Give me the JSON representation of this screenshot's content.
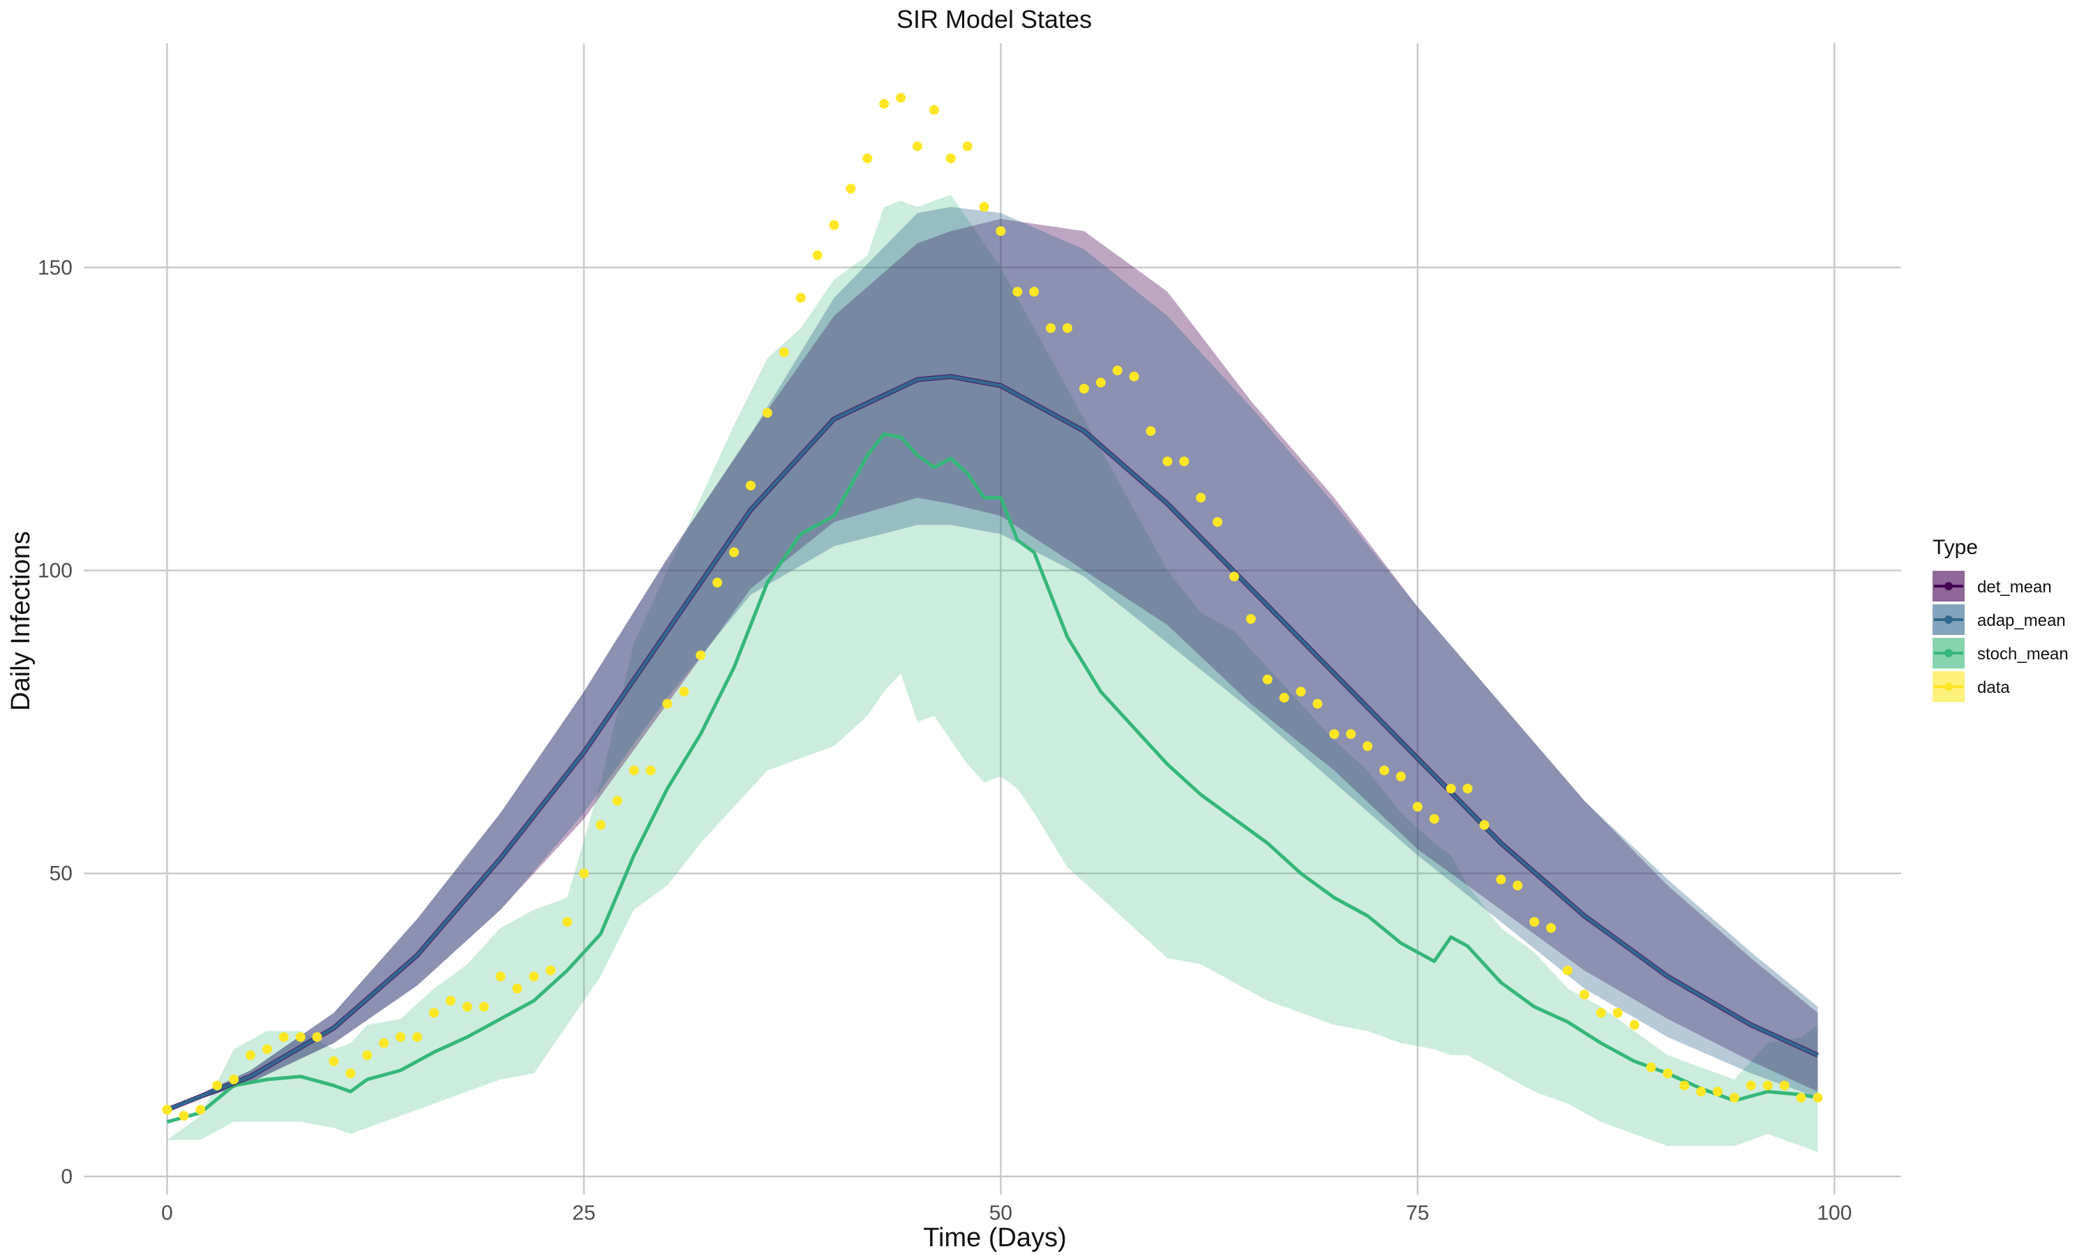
{
  "chart_data": {
    "type": "line",
    "title": "SIR Model States",
    "xlabel": "Time (Days)",
    "ylabel": "Daily Infections",
    "xlim": [
      -5,
      104
    ],
    "ylim": [
      -3,
      187
    ],
    "x_ticks": [
      0,
      25,
      50,
      75,
      100
    ],
    "y_ticks": [
      0,
      50,
      100,
      150
    ],
    "grid": true,
    "legend": {
      "title": "Type",
      "placement": "right",
      "items": [
        {
          "label": "det_mean",
          "color": "#440154"
        },
        {
          "label": "adap_mean",
          "color": "#31688E"
        },
        {
          "label": "stoch_mean",
          "color": "#35B779"
        },
        {
          "label": "data",
          "color": "#FDE725"
        }
      ]
    },
    "series": [
      {
        "name": "det_mean",
        "color": "#440154",
        "fill_opacity": 0.35,
        "x": [
          0,
          5,
          10,
          15,
          20,
          25,
          30,
          35,
          40,
          45,
          47,
          50,
          55,
          60,
          65,
          70,
          75,
          80,
          85,
          90,
          95,
          99
        ],
        "mean": [
          11,
          16.5,
          24.5,
          36.5,
          52.5,
          70,
          90,
          110,
          125,
          131.5,
          132,
          130.5,
          123,
          111,
          97,
          83,
          69,
          55,
          43,
          33,
          25,
          20
        ],
        "upper": [
          11,
          17.5,
          27,
          42.5,
          60,
          80,
          102,
          122.5,
          142,
          154,
          156,
          158,
          156,
          146,
          128,
          112,
          94,
          78,
          62,
          48,
          36,
          27
        ],
        "lower": [
          11,
          15.5,
          22,
          31.5,
          44,
          59,
          78,
          97,
          108,
          112,
          111,
          109,
          100,
          91,
          78,
          67,
          54,
          44,
          34,
          26,
          19,
          14
        ]
      },
      {
        "name": "adap_mean",
        "color": "#31688E",
        "fill_opacity": 0.35,
        "x": [
          0,
          5,
          10,
          15,
          20,
          25,
          30,
          35,
          40,
          45,
          47,
          50,
          55,
          60,
          65,
          70,
          75,
          80,
          85,
          90,
          95,
          99
        ],
        "mean": [
          11,
          16.5,
          24.5,
          36.5,
          52.5,
          70,
          90,
          110,
          125,
          131.5,
          132,
          130.5,
          123,
          111,
          97,
          83,
          69,
          55,
          43,
          33,
          25,
          20
        ],
        "upper": [
          11,
          17.5,
          27,
          42.5,
          60,
          80,
          102,
          122.5,
          145,
          159,
          160,
          159,
          153,
          142,
          127,
          111,
          94,
          78,
          62,
          49,
          37,
          28
        ],
        "lower": [
          11,
          15.5,
          22,
          31.5,
          44,
          60,
          79,
          96,
          104,
          107.5,
          107.5,
          106,
          99,
          88,
          77,
          65,
          53,
          42,
          31,
          23,
          17,
          13
        ]
      },
      {
        "name": "stoch_mean",
        "color": "#35B779",
        "fill_opacity": 0.25,
        "x": [
          0,
          2,
          4,
          6,
          8,
          10,
          11,
          12,
          14,
          16,
          18,
          20,
          22,
          24,
          26,
          28,
          30,
          32,
          34,
          36,
          38,
          40,
          42,
          43,
          44,
          45,
          46,
          47,
          48,
          49,
          50,
          51,
          52,
          54,
          56,
          58,
          60,
          62,
          64,
          66,
          68,
          70,
          72,
          74,
          76,
          77,
          78,
          80,
          82,
          84,
          86,
          88,
          90,
          92,
          94,
          96,
          98,
          99
        ],
        "mean": [
          9,
          10.5,
          15,
          16,
          16.5,
          15,
          14,
          16,
          17.5,
          20.5,
          23,
          26,
          29,
          34,
          40,
          53,
          64,
          73,
          84,
          98,
          106,
          109,
          119,
          122.5,
          122,
          119,
          117,
          118.5,
          116,
          112,
          112,
          105,
          103,
          89,
          80,
          74,
          68,
          63,
          59,
          55,
          50,
          46,
          43,
          38.5,
          35.5,
          39.5,
          38,
          32,
          28,
          25.5,
          22,
          19,
          17,
          14.5,
          12.5,
          14,
          13.5,
          13
        ],
        "upper": [
          6,
          10,
          21,
          24,
          24,
          21,
          22,
          25,
          26,
          31,
          35,
          41,
          44,
          46,
          65,
          88,
          100,
          112,
          124,
          135,
          140,
          148,
          152,
          160,
          161,
          160,
          161,
          162,
          158,
          154,
          150,
          145,
          140,
          130,
          120,
          110,
          100,
          93,
          90,
          84,
          78,
          72,
          67,
          60,
          55,
          53,
          48,
          41,
          37,
          31,
          28,
          24,
          20,
          18,
          16,
          22,
          23,
          25
        ],
        "lower": [
          6,
          6,
          9,
          9,
          9,
          8,
          7,
          8,
          10,
          12,
          14,
          16,
          17,
          25,
          33,
          44,
          48,
          55,
          61,
          67,
          69,
          71,
          76,
          80,
          83,
          75,
          76,
          72,
          68,
          65,
          66,
          64,
          60,
          51,
          46,
          41,
          36,
          35,
          32,
          29,
          27,
          25,
          24,
          22,
          21,
          20,
          20,
          17,
          14,
          12,
          9,
          7,
          5,
          5,
          5,
          7,
          5,
          4
        ]
      }
    ],
    "data_points": {
      "name": "data",
      "color": "#FDE725",
      "x": [
        0,
        1,
        2,
        3,
        4,
        5,
        6,
        7,
        8,
        9,
        10,
        11,
        12,
        13,
        14,
        15,
        16,
        17,
        18,
        19,
        20,
        21,
        22,
        23,
        24,
        25,
        26,
        27,
        28,
        29,
        30,
        31,
        32,
        33,
        34,
        35,
        36,
        37,
        38,
        39,
        40,
        41,
        42,
        43,
        44,
        45,
        46,
        47,
        48,
        49,
        50,
        51,
        52,
        53,
        54,
        55,
        56,
        57,
        58,
        59,
        60,
        61,
        62,
        63,
        64,
        65,
        66,
        67,
        68,
        69,
        70,
        71,
        72,
        73,
        74,
        75,
        76,
        77,
        78,
        79,
        80,
        81,
        82,
        83,
        84,
        85,
        86,
        87,
        88,
        89,
        90,
        91,
        92,
        93,
        94,
        95,
        96,
        97,
        98,
        99
      ],
      "y": [
        11,
        10,
        11,
        15,
        16,
        20,
        21,
        23,
        23,
        23,
        19,
        17,
        20,
        22,
        23,
        23,
        27,
        29,
        28,
        28,
        33,
        31,
        33,
        34,
        42,
        50,
        58,
        62,
        67,
        67,
        78,
        80,
        86,
        98,
        103,
        114,
        126,
        136,
        145,
        152,
        157,
        163,
        168,
        177,
        178,
        170,
        176,
        168,
        170,
        160,
        156,
        146,
        146,
        140,
        140,
        130,
        131,
        133,
        132,
        123,
        118,
        118,
        112,
        108,
        99,
        92,
        82,
        79,
        80,
        78,
        73,
        73,
        71,
        67,
        66,
        61,
        59,
        64,
        64,
        58,
        49,
        48,
        42,
        41,
        34,
        30,
        27,
        27,
        25,
        18,
        17,
        15,
        14,
        14,
        13,
        15,
        15,
        15,
        13,
        13
      ]
    }
  }
}
